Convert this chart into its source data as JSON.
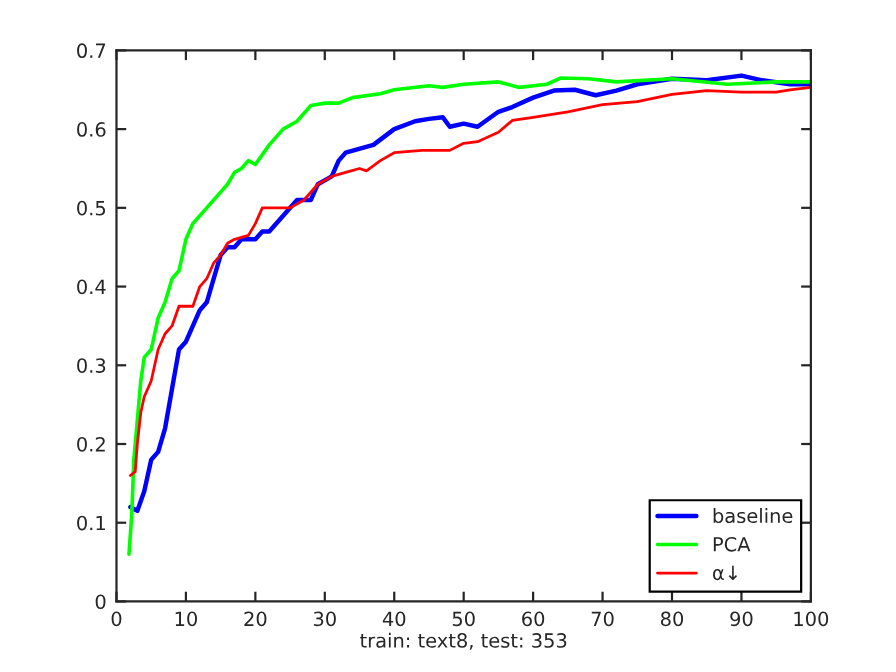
{
  "chart_data": {
    "type": "line",
    "xlabel": "train: text8, test: 353",
    "xlim": [
      0,
      100
    ],
    "ylim": [
      0,
      0.7
    ],
    "xticks": [
      0,
      10,
      20,
      30,
      40,
      50,
      60,
      70,
      80,
      90,
      100
    ],
    "yticks": [
      0,
      0.1,
      0.2,
      0.3,
      0.4,
      0.5,
      0.6,
      0.7
    ],
    "grid": false,
    "legend": "bottom right",
    "marker": "none",
    "line_style": "solid",
    "series": [
      {
        "name": "baseline",
        "color": "#0000ff",
        "x": [
          2,
          3,
          4,
          5,
          6,
          7,
          8,
          9,
          10,
          11,
          12,
          13,
          14,
          15,
          16,
          17,
          18,
          20,
          21,
          22,
          24,
          26,
          28,
          29,
          31,
          32,
          33,
          37,
          40,
          43,
          45,
          47,
          48,
          50,
          52,
          55,
          57,
          60,
          63,
          66,
          69,
          72,
          75,
          80,
          85,
          90,
          93,
          97,
          100
        ],
        "values": [
          0.12,
          0.115,
          0.14,
          0.18,
          0.19,
          0.22,
          0.27,
          0.32,
          0.33,
          0.35,
          0.37,
          0.38,
          0.41,
          0.44,
          0.45,
          0.45,
          0.46,
          0.46,
          0.47,
          0.47,
          0.49,
          0.51,
          0.51,
          0.53,
          0.54,
          0.56,
          0.57,
          0.58,
          0.6,
          0.61,
          0.613,
          0.615,
          0.603,
          0.607,
          0.603,
          0.622,
          0.628,
          0.64,
          0.649,
          0.65,
          0.643,
          0.649,
          0.657,
          0.664,
          0.662,
          0.668,
          0.662,
          0.657,
          0.657
        ]
      },
      {
        "name": "PCA",
        "color": "#00ff00",
        "x": [
          1.8,
          2.2,
          2.5,
          3,
          3.5,
          4,
          5,
          6,
          7,
          8,
          9,
          10,
          11,
          12,
          13,
          14,
          15,
          16,
          17,
          18,
          19,
          20,
          22,
          24,
          26,
          28,
          30,
          32,
          34,
          38,
          40,
          45,
          47,
          50,
          55,
          58,
          62,
          64,
          68,
          72,
          80,
          88,
          95,
          100
        ],
        "values": [
          0.06,
          0.11,
          0.18,
          0.23,
          0.28,
          0.31,
          0.32,
          0.36,
          0.38,
          0.41,
          0.42,
          0.46,
          0.48,
          0.49,
          0.5,
          0.51,
          0.52,
          0.53,
          0.545,
          0.55,
          0.56,
          0.555,
          0.58,
          0.6,
          0.61,
          0.63,
          0.633,
          0.633,
          0.64,
          0.645,
          0.65,
          0.655,
          0.653,
          0.657,
          0.66,
          0.653,
          0.657,
          0.665,
          0.664,
          0.66,
          0.664,
          0.657,
          0.66,
          0.66
        ]
      },
      {
        "name": "α↓",
        "color": "#ff0000",
        "x": [
          2,
          2.7,
          3,
          3.5,
          4,
          5,
          6,
          7,
          8,
          9,
          10,
          11,
          12,
          13,
          14,
          15,
          16,
          17,
          19,
          20,
          21,
          23,
          25,
          27,
          29,
          31,
          33,
          35,
          36,
          38,
          40,
          44,
          48,
          50,
          52,
          55,
          57,
          60,
          65,
          70,
          75,
          80,
          85,
          90,
          95,
          97,
          100
        ],
        "values": [
          0.16,
          0.165,
          0.2,
          0.24,
          0.26,
          0.28,
          0.32,
          0.34,
          0.35,
          0.375,
          0.375,
          0.375,
          0.4,
          0.41,
          0.43,
          0.44,
          0.455,
          0.46,
          0.465,
          0.48,
          0.5,
          0.5,
          0.5,
          0.51,
          0.53,
          0.54,
          0.545,
          0.55,
          0.547,
          0.56,
          0.57,
          0.573,
          0.573,
          0.582,
          0.584,
          0.596,
          0.611,
          0.615,
          0.622,
          0.631,
          0.635,
          0.644,
          0.649,
          0.647,
          0.647,
          0.65,
          0.653
        ]
      }
    ]
  }
}
